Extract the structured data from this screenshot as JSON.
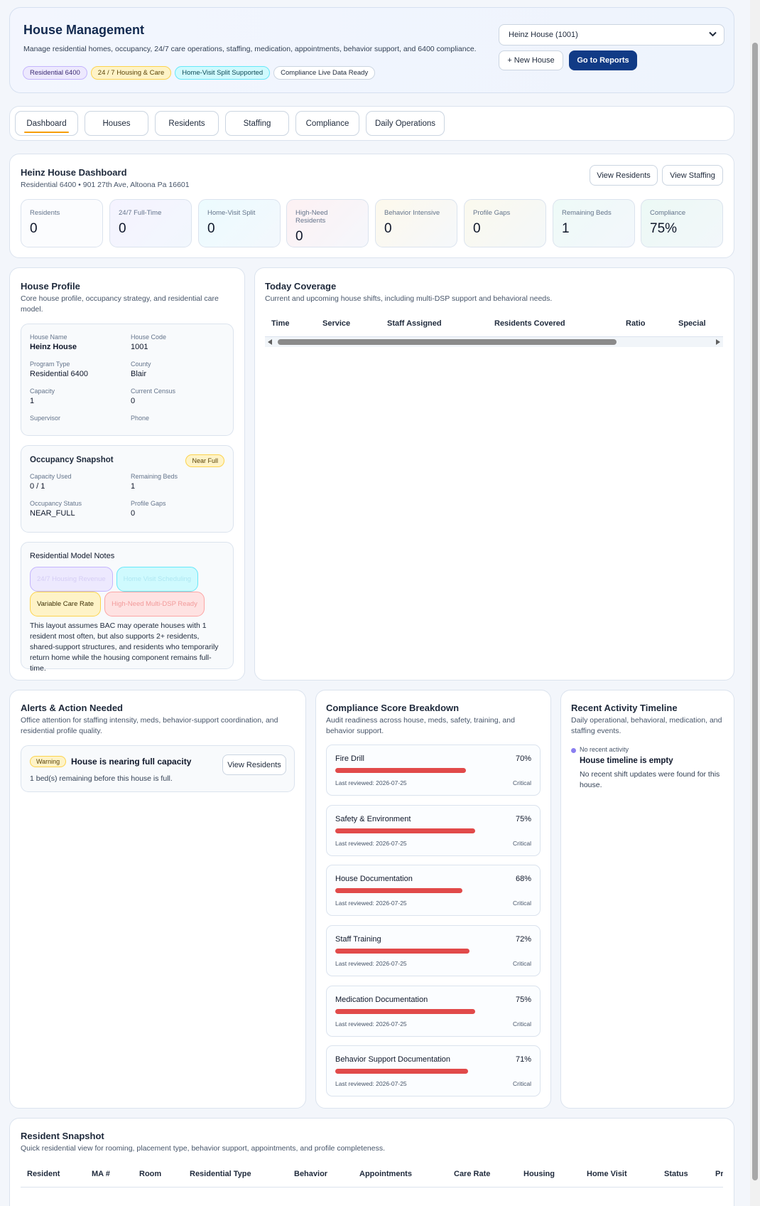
{
  "header": {
    "title": "House Management",
    "description": "Manage residential homes, occupancy, 24/7 care operations, staffing, medication, appointments, behavior support, and 6400 compliance.",
    "tags": [
      "Residential 6400",
      "24 / 7 Housing & Care",
      "Home-Visit Split Supported",
      "Compliance Live Data Ready"
    ],
    "house_select": "Heinz House (1001)",
    "new_house": "+ New House",
    "reports": "Go to Reports"
  },
  "tabs": [
    "Dashboard",
    "Houses",
    "Residents",
    "Staffing",
    "Compliance",
    "Daily Operations"
  ],
  "dashboard": {
    "title": "Heinz House Dashboard",
    "address": "Residential 6400 • 901 27th Ave, Altoona Pa 16601",
    "view_residents": "View Residents",
    "view_staffing": "View Staffing",
    "kpis": [
      {
        "label": "Residents",
        "value": "0"
      },
      {
        "label": "24/7 Full-Time",
        "value": "0"
      },
      {
        "label": "Home-Visit Split",
        "value": "0"
      },
      {
        "label": "High-Need Residents",
        "value": "0"
      },
      {
        "label": "Behavior Intensive",
        "value": "0"
      },
      {
        "label": "Profile Gaps",
        "value": "0"
      },
      {
        "label": "Remaining Beds",
        "value": "1"
      },
      {
        "label": "Compliance",
        "value": "75%"
      }
    ]
  },
  "profile": {
    "title": "House Profile",
    "description": "Core house profile, occupancy strategy, and residential care model.",
    "fields": [
      {
        "label": "House Name",
        "value": "Heinz House"
      },
      {
        "label": "House Code",
        "value": "1001"
      },
      {
        "label": "Program Type",
        "value": "Residential 6400"
      },
      {
        "label": "County",
        "value": "Blair"
      },
      {
        "label": "Capacity",
        "value": "1"
      },
      {
        "label": "Current Census",
        "value": "0"
      },
      {
        "label": "Supervisor",
        "value": ""
      },
      {
        "label": "Phone",
        "value": ""
      }
    ],
    "occupancy": {
      "title": "Occupancy Snapshot",
      "badge": "Near Full",
      "fields": [
        {
          "label": "Capacity Used",
          "value": "0 / 1"
        },
        {
          "label": "Remaining Beds",
          "value": "1"
        },
        {
          "label": "Occupancy Status",
          "value": "NEAR_FULL"
        },
        {
          "label": "Profile Gaps",
          "value": "0"
        }
      ]
    },
    "notes": {
      "title": "Residential Model Notes",
      "chips": [
        "24/7 Housing Revenue",
        "Home Visit Scheduling",
        "Variable Care Rate",
        "High-Need Multi-DSP Ready"
      ],
      "text": "This layout assumes BAC may operate houses with 1 resident most often, but also supports 2+ residents, shared-support structures, and residents who temporarily return home while the housing component remains full-time."
    }
  },
  "coverage": {
    "title": "Today Coverage",
    "description": "Current and upcoming house shifts, including multi-DSP support and behavioral needs.",
    "columns": [
      "Time",
      "Service",
      "Staff Assigned",
      "Residents Covered",
      "Ratio",
      "Special"
    ]
  },
  "alerts": {
    "title": "Alerts & Action Needed",
    "description": "Office attention for staffing intensity, meds, behavior-support coordination, and residential profile quality.",
    "badge": "Warning",
    "alert_title": "House is nearing full capacity",
    "alert_text": "1 bed(s) remaining before this house is full.",
    "action": "View Residents"
  },
  "compliance": {
    "title": "Compliance Score Breakdown",
    "description": "Audit readiness across house, meds, safety, training, and behavior support.",
    "items": [
      {
        "name": "Fire Drill",
        "percent": "70%",
        "fill": 0.7,
        "reviewed": "Last reviewed: 2026-07-25",
        "status": "Critical"
      },
      {
        "name": "Safety & Environment",
        "percent": "75%",
        "fill": 0.75,
        "reviewed": "Last reviewed: 2026-07-25",
        "status": "Critical"
      },
      {
        "name": "House Documentation",
        "percent": "68%",
        "fill": 0.68,
        "reviewed": "Last reviewed: 2026-07-25",
        "status": "Critical"
      },
      {
        "name": "Staff Training",
        "percent": "72%",
        "fill": 0.72,
        "reviewed": "Last reviewed: 2026-07-25",
        "status": "Critical"
      },
      {
        "name": "Medication Documentation",
        "percent": "75%",
        "fill": 0.75,
        "reviewed": "Last reviewed: 2026-07-25",
        "status": "Critical"
      },
      {
        "name": "Behavior Support Documentation",
        "percent": "71%",
        "fill": 0.71,
        "reviewed": "Last reviewed: 2026-07-25",
        "status": "Critical"
      }
    ]
  },
  "timeline": {
    "title": "Recent Activity Timeline",
    "description": "Daily operational, behavioral, medication, and staffing events.",
    "tag": "No recent activity",
    "empty_title": "House timeline is empty",
    "empty_text": "No recent shift updates were found for this house."
  },
  "residents": {
    "title": "Resident Snapshot",
    "description": "Quick residential view for rooming, placement type, behavior support, appointments, and profile completeness.",
    "columns": [
      "Resident",
      "MA #",
      "Room",
      "Residential Type",
      "Behavior",
      "Appointments",
      "Care Rate",
      "Housing",
      "Home Visit",
      "Status",
      "Pr"
    ]
  }
}
